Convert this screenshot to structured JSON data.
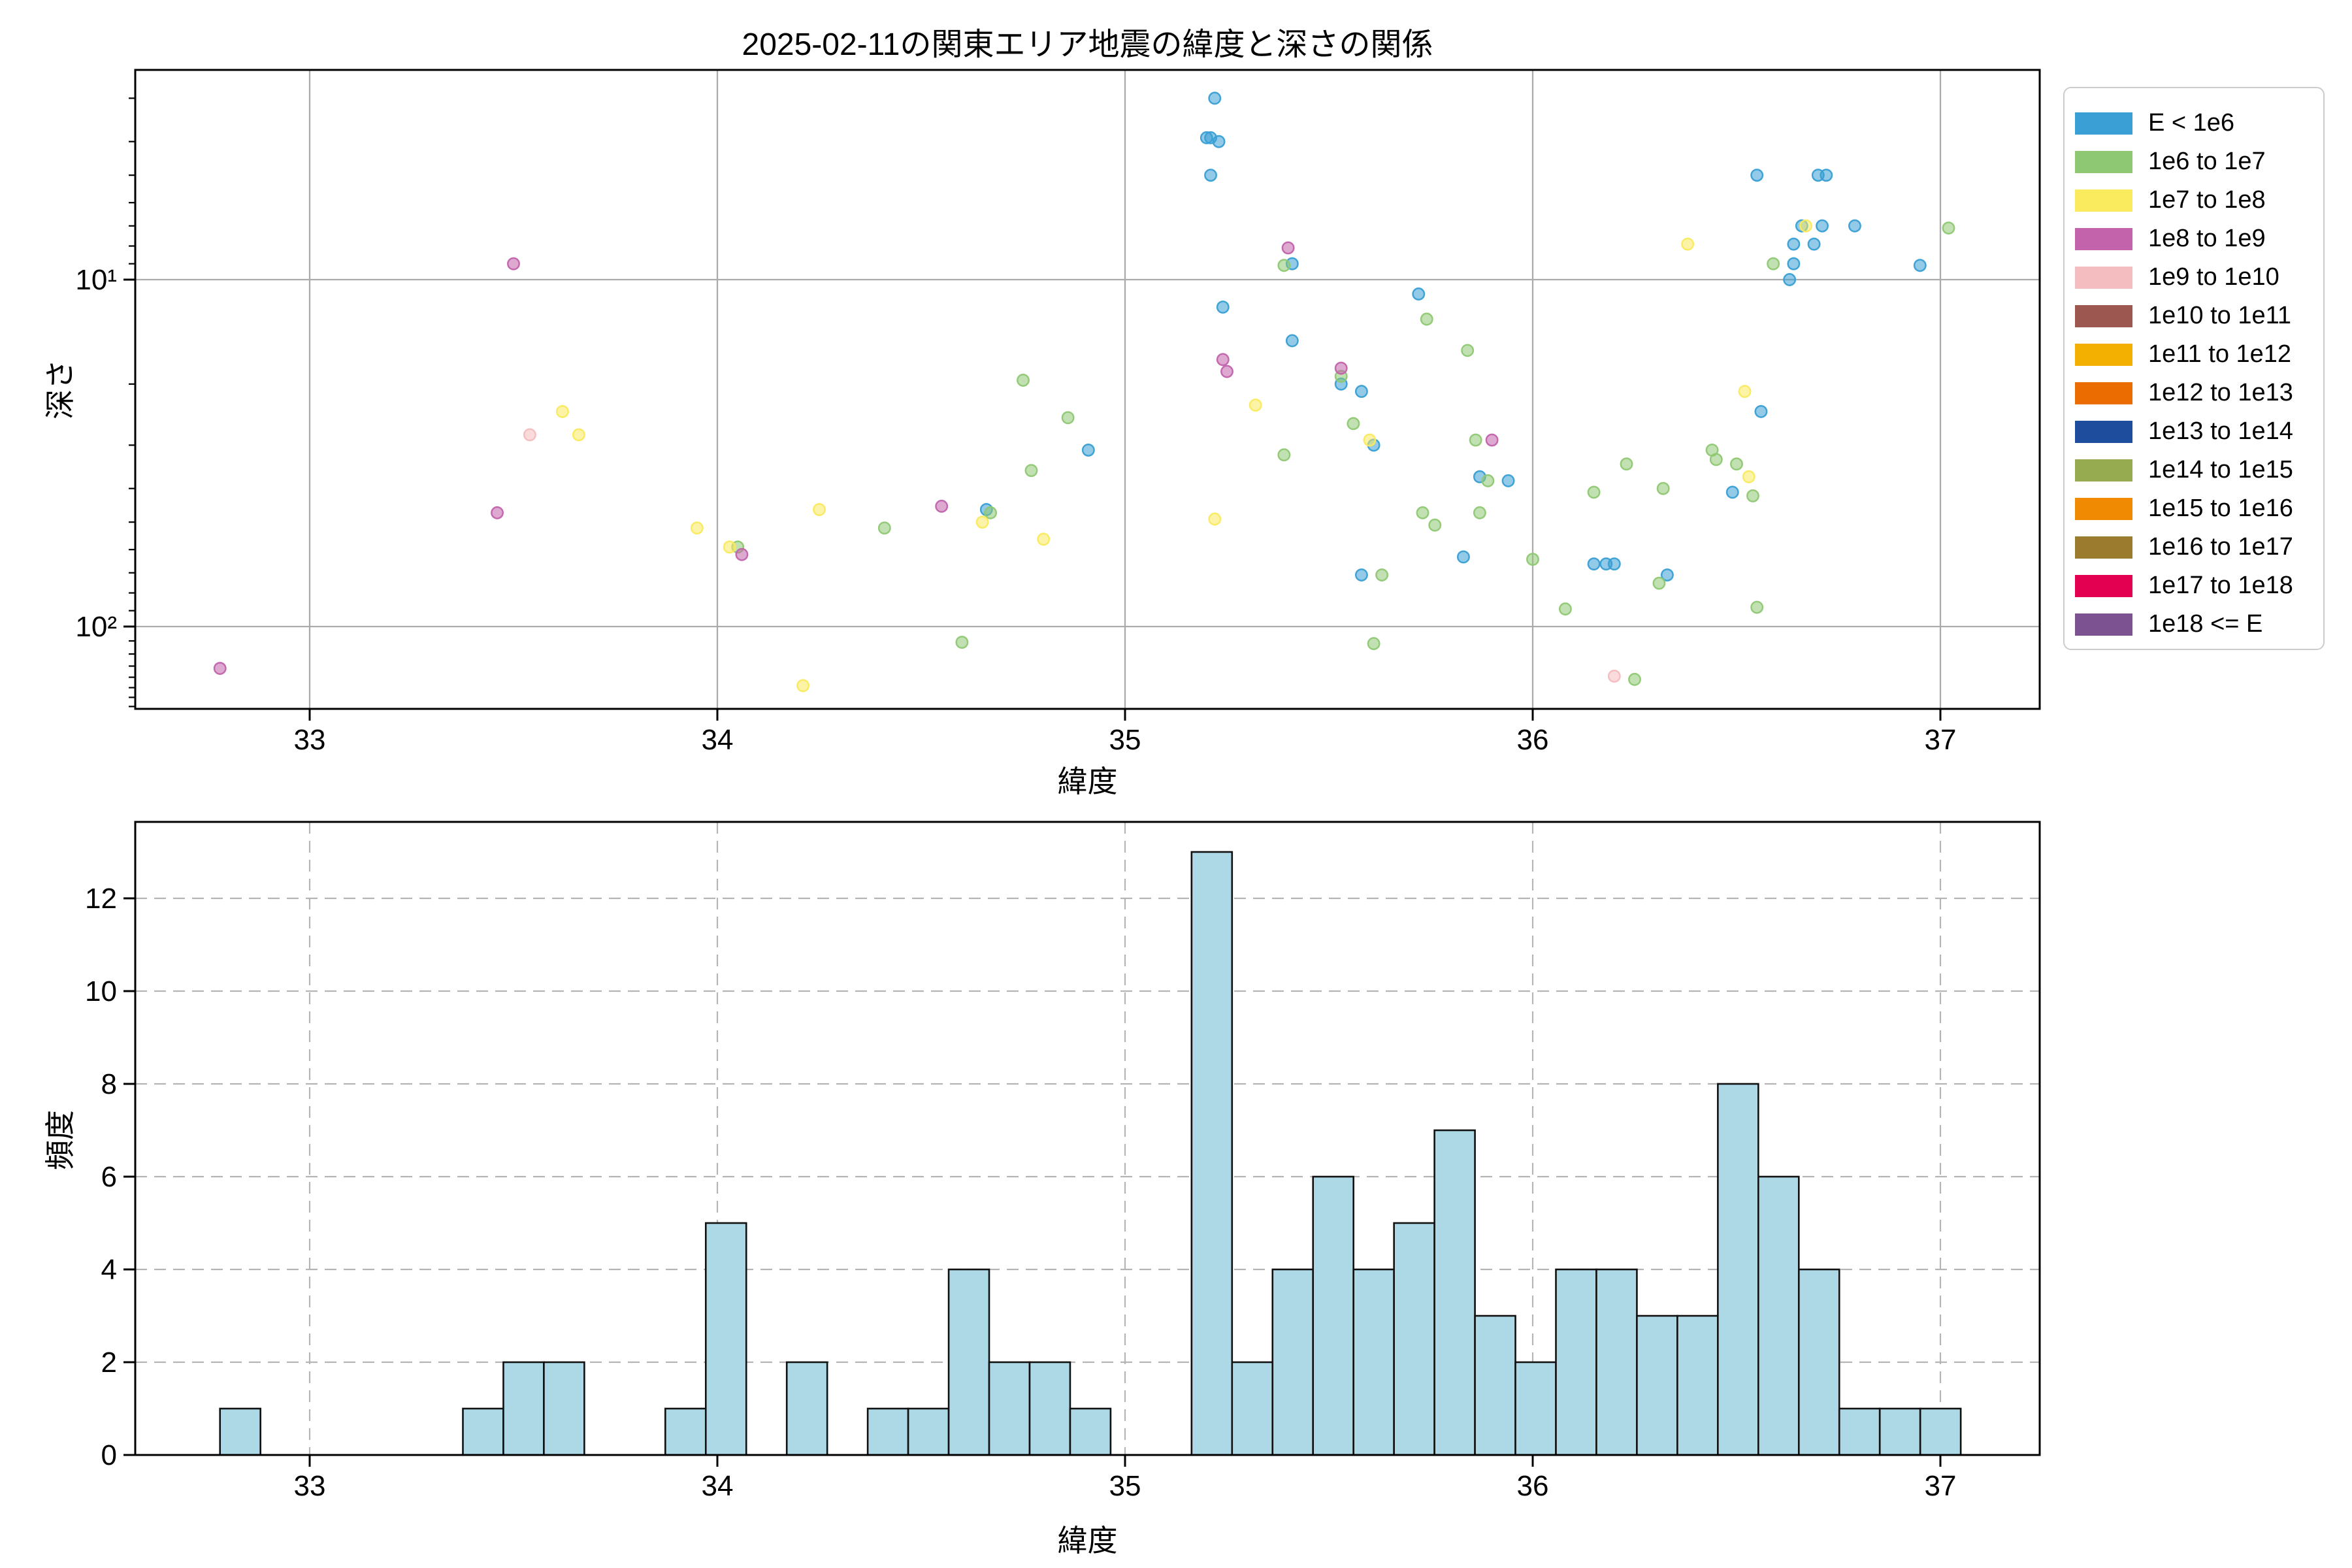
{
  "title": "2025-02-11の関東エリア地震の緯度と深さの関係",
  "scatter": {
    "xlabel": "緯度",
    "ylabel": "深さ",
    "x_ticks": [
      33,
      34,
      35,
      36,
      37
    ],
    "y_major_ticks": [
      {
        "label": "10¹",
        "value": 10
      },
      {
        "label": "10²",
        "value": 100
      }
    ],
    "y_minor_ticks": [
      3,
      4,
      5,
      6,
      7,
      8,
      9,
      20,
      30,
      40,
      50,
      60,
      70,
      80,
      90,
      110,
      120,
      130,
      140,
      150,
      160,
      170
    ],
    "xlim": [
      32.572,
      37.24
    ],
    "ylim_depth": [
      2.49,
      172.6
    ],
    "grid_color": "#ababab"
  },
  "histogram": {
    "xlabel": "緯度",
    "ylabel": "頻度",
    "x_ticks": [
      33,
      34,
      35,
      36,
      37
    ],
    "y_ticks": [
      0,
      2,
      4,
      6,
      8,
      10,
      12
    ],
    "ylim": [
      0,
      13.65
    ],
    "bar_fill": "#ADD8E6",
    "bar_edge": "#111111",
    "grid_color": "#b5b5b5"
  },
  "legend": {
    "entries": [
      {
        "label": "E < 1e6",
        "color": "#399FD4"
      },
      {
        "label": "1e6 to 1e7",
        "color": "#8FC873"
      },
      {
        "label": "1e7 to 1e8",
        "color": "#F9EA5E"
      },
      {
        "label": "1e8 to 1e9",
        "color": "#C263AC"
      },
      {
        "label": "1e9 to 1e10",
        "color": "#F4BDBF"
      },
      {
        "label": "1e10 to 1e11",
        "color": "#9C5751"
      },
      {
        "label": "1e11 to 1e12",
        "color": "#F3B001"
      },
      {
        "label": "1e12 to 1e13",
        "color": "#EB6C01"
      },
      {
        "label": "1e13 to 1e14",
        "color": "#1D4D9C"
      },
      {
        "label": "1e14 to 1e15",
        "color": "#96AB50"
      },
      {
        "label": "1e15 to 1e16",
        "color": "#F18A03"
      },
      {
        "label": "1e16 to 1e17",
        "color": "#9B7B2E"
      },
      {
        "label": "1e17 to 1e18",
        "color": "#E30050"
      },
      {
        "label": "1e18 <= E",
        "color": "#7C5390"
      }
    ]
  },
  "chart_data": [
    {
      "type": "scatter",
      "title": "2025-02-11の関東エリア地震の緯度と深さの関係",
      "xlabel": "緯度",
      "ylabel": "深さ",
      "xlim": [
        32.572,
        37.24
      ],
      "ylim_depth_log_inverted": [
        2.49,
        172.6
      ],
      "x_ticks": [
        33,
        34,
        35,
        36,
        37
      ],
      "y_tick_labels": [
        "10¹",
        "10²"
      ],
      "legend_position": "upper right outside",
      "grid": true,
      "series": [
        {
          "name": "E < 1e6",
          "color": "#399FD4",
          "points": [
            [
              35.22,
              3.0
            ],
            [
              35.2,
              3.9
            ],
            [
              35.21,
              3.9
            ],
            [
              35.23,
              4.0
            ],
            [
              35.21,
              5.0
            ],
            [
              35.41,
              9.0
            ],
            [
              35.24,
              12
            ],
            [
              35.41,
              15
            ],
            [
              35.53,
              20
            ],
            [
              35.58,
              21
            ],
            [
              35.61,
              30
            ],
            [
              34.66,
              46
            ],
            [
              34.91,
              31
            ],
            [
              35.72,
              11
            ],
            [
              35.87,
              37
            ],
            [
              35.94,
              38
            ],
            [
              35.83,
              63
            ],
            [
              35.58,
              71
            ],
            [
              36.15,
              66
            ],
            [
              36.18,
              66
            ],
            [
              36.2,
              66
            ],
            [
              36.55,
              5.0
            ],
            [
              36.7,
              5.0
            ],
            [
              36.72,
              5.0
            ],
            [
              36.66,
              7.0
            ],
            [
              36.71,
              7.0
            ],
            [
              36.79,
              7.0
            ],
            [
              36.64,
              7.9
            ],
            [
              36.69,
              7.9
            ],
            [
              36.64,
              9.0
            ],
            [
              36.95,
              9.1
            ],
            [
              36.63,
              10
            ],
            [
              36.56,
              24
            ],
            [
              36.49,
              41
            ],
            [
              36.33,
              71
            ]
          ]
        },
        {
          "name": "1e6 to 1e7",
          "color": "#8FC873",
          "points": [
            [
              34.41,
              52
            ],
            [
              34.05,
              59
            ],
            [
              34.67,
              47
            ],
            [
              34.75,
              19.5
            ],
            [
              34.86,
              25
            ],
            [
              34.77,
              35.5
            ],
            [
              34.6,
              111
            ],
            [
              35.39,
              9.1
            ],
            [
              35.53,
              19
            ],
            [
              35.56,
              26
            ],
            [
              35.39,
              32
            ],
            [
              35.74,
              13
            ],
            [
              35.84,
              16
            ],
            [
              35.86,
              29
            ],
            [
              35.89,
              38
            ],
            [
              35.73,
              47
            ],
            [
              35.76,
              51
            ],
            [
              35.87,
              47
            ],
            [
              35.63,
              71
            ],
            [
              36.0,
              64
            ],
            [
              36.08,
              89
            ],
            [
              35.61,
              112
            ],
            [
              37.02,
              7.1
            ],
            [
              36.59,
              9.0
            ],
            [
              36.44,
              31
            ],
            [
              36.45,
              33
            ],
            [
              36.5,
              34
            ],
            [
              36.23,
              34
            ],
            [
              36.32,
              40
            ],
            [
              36.15,
              41
            ],
            [
              36.54,
              42
            ],
            [
              36.31,
              75
            ],
            [
              36.55,
              88
            ],
            [
              36.25,
              142
            ]
          ]
        },
        {
          "name": "1e7 to 1e8",
          "color": "#F9EA5E",
          "points": [
            [
              33.62,
              24
            ],
            [
              33.66,
              28
            ],
            [
              33.95,
              52
            ],
            [
              34.25,
              46
            ],
            [
              34.03,
              59
            ],
            [
              34.65,
              50
            ],
            [
              34.8,
              56
            ],
            [
              34.21,
              148
            ],
            [
              35.32,
              23
            ],
            [
              35.6,
              29
            ],
            [
              35.22,
              49
            ],
            [
              36.67,
              7.0
            ],
            [
              36.38,
              7.9
            ],
            [
              36.52,
              21
            ],
            [
              36.53,
              37
            ]
          ]
        },
        {
          "name": "1e8 to 1e9",
          "color": "#C263AC",
          "points": [
            [
              33.5,
              9.0
            ],
            [
              32.78,
              132
            ],
            [
              33.46,
              47
            ],
            [
              34.06,
              62
            ],
            [
              34.55,
              45
            ],
            [
              35.4,
              8.1
            ],
            [
              35.24,
              17
            ],
            [
              35.25,
              18.4
            ],
            [
              35.53,
              18
            ],
            [
              35.9,
              29
            ]
          ]
        },
        {
          "name": "1e9 to 1e10",
          "color": "#F4BDBF",
          "points": [
            [
              33.54,
              28
            ],
            [
              36.2,
              139
            ]
          ]
        },
        {
          "name": "1e10 to 1e11",
          "color": "#9C5751",
          "points": []
        },
        {
          "name": "1e11 to 1e12",
          "color": "#F3B001",
          "points": []
        },
        {
          "name": "1e12 to 1e13",
          "color": "#EB6C01",
          "points": []
        },
        {
          "name": "1e13 to 1e14",
          "color": "#1D4D9C",
          "points": []
        },
        {
          "name": "1e14 to 1e15",
          "color": "#96AB50",
          "points": []
        },
        {
          "name": "1e15 to 1e16",
          "color": "#F18A03",
          "points": []
        },
        {
          "name": "1e16 to 1e17",
          "color": "#9B7B2E",
          "points": []
        },
        {
          "name": "1e17 to 1e18",
          "color": "#E30050",
          "points": []
        },
        {
          "name": "1e18 <= E",
          "color": "#7C5390",
          "points": []
        }
      ]
    },
    {
      "type": "bar",
      "xlabel": "緯度",
      "ylabel": "頻度",
      "bin_start": 32.78,
      "bin_width": 0.0993,
      "counts": [
        1,
        0,
        0,
        0,
        0,
        0,
        1,
        2,
        2,
        0,
        0,
        1,
        5,
        0,
        2,
        0,
        1,
        1,
        4,
        2,
        2,
        1,
        0,
        0,
        13,
        2,
        4,
        6,
        4,
        5,
        7,
        3,
        2,
        4,
        4,
        3,
        3,
        8,
        6,
        4,
        1,
        1,
        1
      ],
      "x_ticks": [
        33,
        34,
        35,
        36,
        37
      ],
      "y_ticks": [
        0,
        2,
        4,
        6,
        8,
        10,
        12
      ],
      "ylim": [
        0,
        13.65
      ],
      "grid": "dashed"
    }
  ]
}
